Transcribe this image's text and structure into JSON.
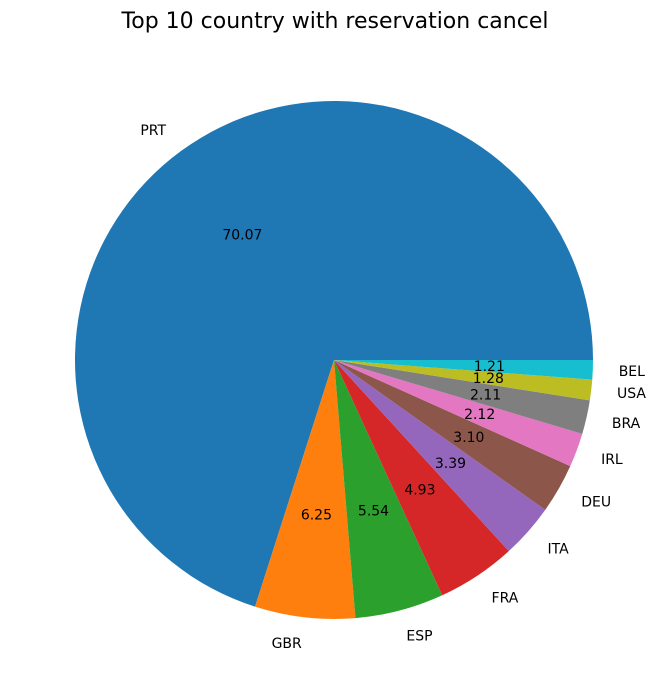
{
  "chart_data": {
    "type": "pie",
    "title": "Top 10 country with reservation cancel",
    "categories": [
      "PRT",
      "GBR",
      "ESP",
      "FRA",
      "ITA",
      "DEU",
      "IRL",
      "BRA",
      "USA",
      "BEL"
    ],
    "values": [
      70.07,
      6.25,
      5.54,
      4.93,
      3.39,
      3.1,
      2.12,
      2.11,
      1.28,
      1.21
    ],
    "value_labels": [
      "70.07",
      "6.25",
      "5.54",
      "4.93",
      "3.39",
      "3.10",
      "2.12",
      "2.11",
      "1.28",
      "1.21"
    ],
    "colors": [
      "#1f77b4",
      "#ff7f0e",
      "#2ca02c",
      "#d62728",
      "#9467bd",
      "#8c564b",
      "#e377c2",
      "#7f7f7f",
      "#bcbd22",
      "#17becf"
    ],
    "start_angle": "3 o'clock",
    "direction": "counter-clockwise"
  }
}
